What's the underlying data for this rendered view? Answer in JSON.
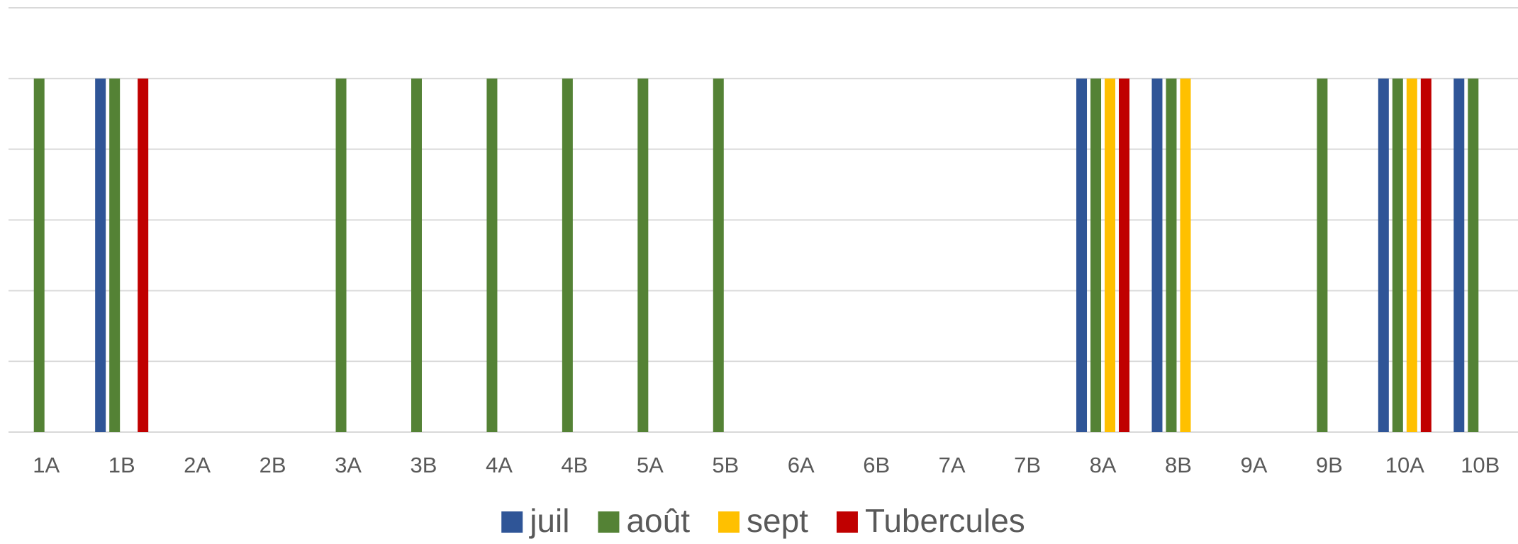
{
  "chart_data": {
    "type": "bar",
    "categories": [
      "1A",
      "1B",
      "2A",
      "2B",
      "3A",
      "3B",
      "4A",
      "4B",
      "5A",
      "5B",
      "6A",
      "6B",
      "7A",
      "7B",
      "8A",
      "8B",
      "9A",
      "9B",
      "10A",
      "10B"
    ],
    "series": [
      {
        "name": "juil",
        "color": "#2f5597",
        "values": [
          null,
          1,
          null,
          null,
          null,
          null,
          null,
          null,
          null,
          null,
          null,
          null,
          null,
          null,
          1,
          1,
          null,
          null,
          1,
          1
        ]
      },
      {
        "name": "août",
        "color": "#548235",
        "values": [
          1,
          1,
          null,
          null,
          1,
          1,
          1,
          1,
          1,
          1,
          null,
          null,
          null,
          null,
          1,
          1,
          null,
          1,
          1,
          1
        ]
      },
      {
        "name": "sept",
        "color": "#ffc000",
        "values": [
          null,
          null,
          null,
          null,
          null,
          null,
          null,
          null,
          null,
          null,
          null,
          null,
          null,
          null,
          1,
          1,
          null,
          null,
          1,
          null
        ]
      },
      {
        "name": "Tubercules",
        "color": "#c00000",
        "values": [
          null,
          1,
          null,
          null,
          null,
          null,
          null,
          null,
          null,
          null,
          null,
          null,
          null,
          null,
          1,
          null,
          null,
          null,
          1,
          null
        ]
      }
    ],
    "ylim": [
      0,
      1.2
    ],
    "yticks": [
      0,
      0.2,
      0.4,
      0.6,
      0.8,
      1,
      1.2
    ],
    "grid": true,
    "legend": "bottom"
  }
}
